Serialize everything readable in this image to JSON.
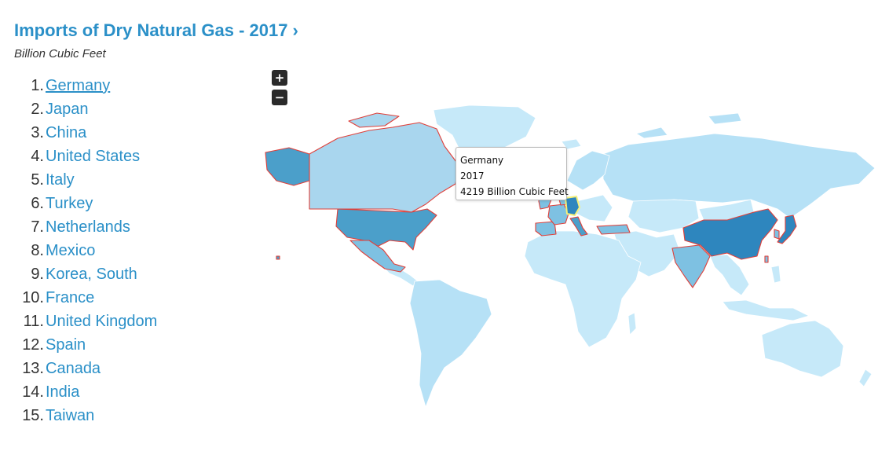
{
  "header": {
    "title": "Imports of Dry Natural Gas - 2017 ›",
    "subtitle": "Billion Cubic Feet"
  },
  "ranking": {
    "items": [
      {
        "rank": "1.",
        "name": "Germany"
      },
      {
        "rank": "2.",
        "name": "Japan"
      },
      {
        "rank": "3.",
        "name": "China"
      },
      {
        "rank": "4.",
        "name": "United States"
      },
      {
        "rank": "5.",
        "name": "Italy"
      },
      {
        "rank": "6.",
        "name": "Turkey"
      },
      {
        "rank": "7.",
        "name": "Netherlands"
      },
      {
        "rank": "8.",
        "name": "Mexico"
      },
      {
        "rank": "9.",
        "name": "Korea, South"
      },
      {
        "rank": "10.",
        "name": "France"
      },
      {
        "rank": "11.",
        "name": "United Kingdom"
      },
      {
        "rank": "12.",
        "name": "Spain"
      },
      {
        "rank": "13.",
        "name": "Canada"
      },
      {
        "rank": "14.",
        "name": "India"
      },
      {
        "rank": "15.",
        "name": "Taiwan"
      }
    ]
  },
  "zoom": {
    "in_label": "+",
    "out_label": "−"
  },
  "tooltip": {
    "country": "Germany",
    "year": "2017",
    "value_text": "4219 Billion Cubic Feet"
  },
  "colors": {
    "accent": "#2b90c8",
    "highlight_border": "#e0403a",
    "selected_fill": "#f5f07a",
    "scale": [
      "#c6e9f9",
      "#a9d6ee",
      "#7ec1e2",
      "#4b9fca",
      "#2e86be"
    ]
  }
}
